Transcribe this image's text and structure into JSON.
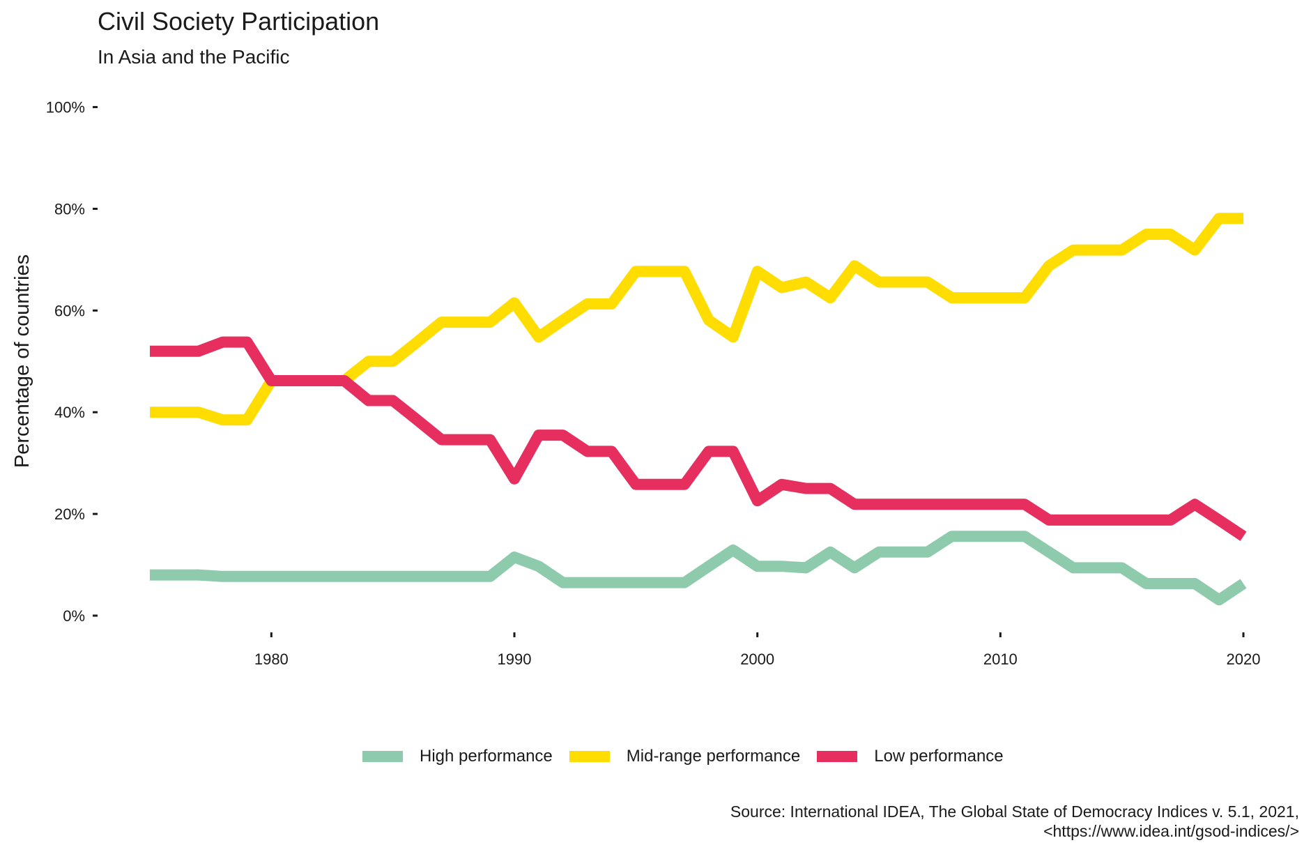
{
  "chart_data": {
    "type": "line",
    "title": "Civil Society Participation",
    "subtitle": "In Asia and the Pacific",
    "xlabel": "",
    "ylabel": "Percentage of countries",
    "xlim": [
      1975,
      2020
    ],
    "ylim": [
      0,
      100
    ],
    "x_ticks": [
      1980,
      1990,
      2000,
      2010,
      2020
    ],
    "y_ticks": [
      0,
      20,
      40,
      60,
      80,
      100
    ],
    "y_tick_labels": [
      "0%",
      "20%",
      "40%",
      "60%",
      "80%",
      "100%"
    ],
    "grid": false,
    "legend_position": "bottom",
    "x": [
      1975,
      1976,
      1977,
      1978,
      1979,
      1980,
      1981,
      1982,
      1983,
      1984,
      1985,
      1986,
      1987,
      1988,
      1989,
      1990,
      1991,
      1992,
      1993,
      1994,
      1995,
      1996,
      1997,
      1998,
      1999,
      2000,
      2001,
      2002,
      2003,
      2004,
      2005,
      2006,
      2007,
      2008,
      2009,
      2010,
      2011,
      2012,
      2013,
      2014,
      2015,
      2016,
      2017,
      2018,
      2019,
      2020
    ],
    "series": [
      {
        "name": "High performance",
        "color": "#8ecbad",
        "values": [
          8.0,
          8.0,
          8.0,
          7.7,
          7.7,
          7.7,
          7.7,
          7.7,
          7.7,
          7.7,
          7.7,
          7.7,
          7.7,
          7.7,
          7.7,
          11.5,
          9.7,
          6.5,
          6.5,
          6.5,
          6.5,
          6.5,
          6.5,
          9.7,
          12.9,
          9.7,
          9.7,
          9.4,
          12.5,
          9.4,
          12.5,
          12.5,
          12.5,
          15.6,
          15.6,
          15.6,
          15.6,
          12.5,
          9.4,
          9.4,
          9.4,
          6.3,
          6.3,
          6.3,
          3.1,
          6.3
        ]
      },
      {
        "name": "Mid-range performance",
        "color": "#ffdd00",
        "values": [
          40.0,
          40.0,
          40.0,
          38.5,
          38.5,
          46.2,
          46.2,
          46.2,
          46.2,
          50.0,
          50.0,
          53.8,
          57.7,
          57.7,
          57.7,
          61.5,
          54.8,
          58.1,
          61.3,
          61.3,
          67.7,
          67.7,
          67.7,
          58.1,
          54.8,
          67.7,
          64.5,
          65.6,
          62.5,
          68.8,
          65.6,
          65.6,
          65.6,
          62.5,
          62.5,
          62.5,
          62.5,
          68.8,
          71.9,
          71.9,
          71.9,
          75.0,
          75.0,
          71.9,
          78.1,
          78.1
        ]
      },
      {
        "name": "Low performance",
        "color": "#e62e5f",
        "values": [
          52.0,
          52.0,
          52.0,
          53.8,
          53.8,
          46.2,
          46.2,
          46.2,
          46.2,
          42.3,
          42.3,
          38.5,
          34.6,
          34.6,
          34.6,
          26.9,
          35.5,
          35.5,
          32.3,
          32.3,
          25.8,
          25.8,
          25.8,
          32.3,
          32.3,
          22.6,
          25.8,
          25.0,
          25.0,
          21.9,
          21.9,
          21.9,
          21.9,
          21.9,
          21.9,
          21.9,
          21.9,
          18.8,
          18.8,
          18.8,
          18.8,
          18.8,
          18.8,
          21.9,
          18.8,
          15.6
        ]
      }
    ]
  },
  "source": {
    "line1": "Source: International IDEA, The Global State of Democracy Indices v. 5.1, 2021,",
    "line2": "<https://www.idea.int/gsod-indices/>"
  }
}
